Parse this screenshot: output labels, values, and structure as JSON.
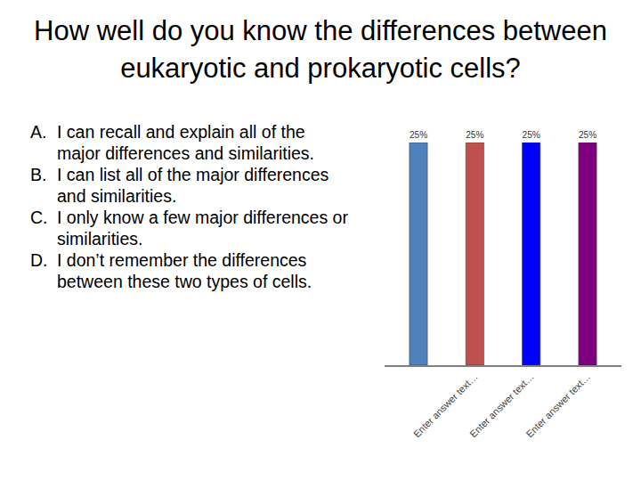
{
  "chart_data": {
    "type": "bar",
    "title": "How well do you know the differences between eukaryotic and prokaryotic cells?",
    "annotations": [
      {
        "label": "A.",
        "text": "I can recall and explain all of the major differences and similarities."
      },
      {
        "label": "B.",
        "text": "I can list all of the major differences and similarities."
      },
      {
        "label": "C.",
        "text": "I only know a few major differences or similarities."
      },
      {
        "label": "D.",
        "text": "I don’t remember the differences between these two types of cells."
      }
    ],
    "categories": [
      "Enter answer text…",
      "Enter answer text…",
      "Enter answer text…",
      "Enter answer text…"
    ],
    "values": [
      25,
      25,
      25,
      25
    ],
    "value_labels": [
      "25%",
      "25%",
      "25%",
      "25%"
    ],
    "colors": [
      "#4f81bd",
      "#c0504d",
      "#0000ff",
      "#7f007f"
    ],
    "ylim": [
      0,
      25
    ],
    "data_labels": true,
    "tick_labels": "x",
    "grid": false
  }
}
